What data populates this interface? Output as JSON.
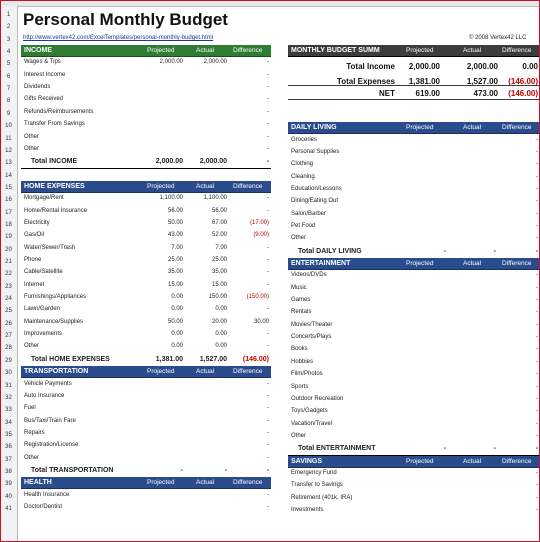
{
  "title": "Personal Monthly Budget",
  "link": "http://www.vertex42.com/ExcelTemplates/personal-monthly-budget.html",
  "copyright": "© 2008 Vertex42 LLC",
  "columns": {
    "projected": "Projected",
    "actual": "Actual",
    "difference": "Difference"
  },
  "row_numbers": [
    "1",
    "2",
    "3",
    "4",
    "5",
    "6",
    "7",
    "8",
    "9",
    "10",
    "11",
    "12",
    "13",
    "14",
    "15",
    "16",
    "17",
    "18",
    "19",
    "20",
    "21",
    "22",
    "23",
    "24",
    "25",
    "26",
    "27",
    "28",
    "29",
    "30",
    "31",
    "32",
    "33",
    "34",
    "35",
    "36",
    "37",
    "38",
    "39",
    "40",
    "41"
  ],
  "income": {
    "title": "INCOME",
    "rows": [
      {
        "label": "Wages & Tips",
        "projected": "2,000.00",
        "actual": "2,000.00",
        "difference": "-"
      },
      {
        "label": "Interest Income",
        "projected": "",
        "actual": "",
        "difference": "-"
      },
      {
        "label": "Dividends",
        "projected": "",
        "actual": "",
        "difference": "-"
      },
      {
        "label": "Gifts Received",
        "projected": "",
        "actual": "",
        "difference": "-"
      },
      {
        "label": "Refunds/Reimbursements",
        "projected": "",
        "actual": "",
        "difference": "-"
      },
      {
        "label": "Transfer From Savings",
        "projected": "",
        "actual": "",
        "difference": "-"
      },
      {
        "label": "Other",
        "projected": "",
        "actual": "",
        "difference": "-"
      },
      {
        "label": "Other",
        "projected": "",
        "actual": "",
        "difference": "-"
      }
    ],
    "total": {
      "label": "Total INCOME",
      "projected": "2,000.00",
      "actual": "2,000.00",
      "difference": "-"
    }
  },
  "home": {
    "title": "HOME EXPENSES",
    "rows": [
      {
        "label": "Mortgage/Rent",
        "projected": "1,100.00",
        "actual": "1,100.00",
        "difference": "-"
      },
      {
        "label": "Home/Rental Insurance",
        "projected": "56.00",
        "actual": "56.00",
        "difference": "-"
      },
      {
        "label": "Electricity",
        "projected": "50.00",
        "actual": "67.00",
        "difference": "(17.00)"
      },
      {
        "label": "Gas/Oil",
        "projected": "43.00",
        "actual": "52.00",
        "difference": "(9.00)"
      },
      {
        "label": "Water/Sewer/Trash",
        "projected": "7.00",
        "actual": "7.00",
        "difference": "-"
      },
      {
        "label": "Phone",
        "projected": "25.00",
        "actual": "25.00",
        "difference": "-"
      },
      {
        "label": "Cable/Satellite",
        "projected": "35.00",
        "actual": "35.00",
        "difference": "-"
      },
      {
        "label": "Internet",
        "projected": "15.00",
        "actual": "15.00",
        "difference": "-"
      },
      {
        "label": "Furnishings/Appliances",
        "projected": "0.00",
        "actual": "150.00",
        "difference": "(150.00)"
      },
      {
        "label": "Lawn/Garden",
        "projected": "0.00",
        "actual": "0.00",
        "difference": "-"
      },
      {
        "label": "Maintenance/Supplies",
        "projected": "50.00",
        "actual": "20.00",
        "difference": "30.00"
      },
      {
        "label": "Improvements",
        "projected": "0.00",
        "actual": "0.00",
        "difference": "-"
      },
      {
        "label": "Other",
        "projected": "0.00",
        "actual": "0.00",
        "difference": "-"
      }
    ],
    "total": {
      "label": "Total HOME EXPENSES",
      "projected": "1,381.00",
      "actual": "1,527.00",
      "difference": "(146.00)"
    }
  },
  "transport": {
    "title": "TRANSPORTATION",
    "rows": [
      {
        "label": "Vehicle Payments",
        "difference": "-"
      },
      {
        "label": "Auto Insurance",
        "difference": "-"
      },
      {
        "label": "Fuel",
        "difference": "-"
      },
      {
        "label": "Bus/Taxi/Train Fare",
        "difference": "-"
      },
      {
        "label": "Repairs",
        "difference": "-"
      },
      {
        "label": "Registration/License",
        "difference": "-"
      },
      {
        "label": "Other",
        "difference": "-"
      }
    ],
    "total": {
      "label": "Total TRANSPORTATION",
      "projected": "-",
      "actual": "-",
      "difference": "-"
    }
  },
  "health": {
    "title": "HEALTH",
    "rows": [
      {
        "label": "Health Insurance",
        "difference": "-"
      },
      {
        "label": "Doctor/Dentist",
        "difference": "-"
      }
    ]
  },
  "summary": {
    "title": "MONTHLY BUDGET SUMM",
    "income": {
      "label": "Total Income",
      "projected": "2,000.00",
      "actual": "2,000.00",
      "difference": "0.00"
    },
    "expenses": {
      "label": "Total Expenses",
      "projected": "1,381.00",
      "actual": "1,527.00",
      "difference": "(146.00)"
    },
    "net": {
      "label": "NET",
      "projected": "619.00",
      "actual": "473.00",
      "difference": "(146.00)"
    }
  },
  "daily": {
    "title": "DAILY LIVING",
    "rows": [
      "Groceries",
      "Personal Supplies",
      "Clothing",
      "Cleaning",
      "Education/Lessons",
      "Dining/Eating Out",
      "Salon/Barber",
      "Pet Food",
      "Other"
    ],
    "total": {
      "label": "Total DAILY LIVING",
      "projected": "-",
      "actual": "-",
      "difference": "-"
    }
  },
  "entertainment": {
    "title": "ENTERTAINMENT",
    "rows": [
      "Videos/DVDs",
      "Music",
      "Games",
      "Rentals",
      "Movies/Theater",
      "Concerts/Plays",
      "Books",
      "Hobbies",
      "Film/Photos",
      "Sports",
      "Outdoor Recreation",
      "Toys/Gadgets",
      "Vacation/Travel",
      "Other"
    ],
    "total": {
      "label": "Total ENTERTAINMENT",
      "projected": "-",
      "actual": "-",
      "difference": "-"
    }
  },
  "savings": {
    "title": "SAVINGS",
    "rows": [
      "Emergency Fund",
      "Transfer to Savings",
      "Retirement (401k, IRA)",
      "Investments"
    ]
  },
  "colors": {
    "green": "#2e7d32",
    "blue": "#2b4c8c",
    "dark": "#3c3c3c",
    "negative": "#c00000",
    "border": "#c8102e"
  }
}
